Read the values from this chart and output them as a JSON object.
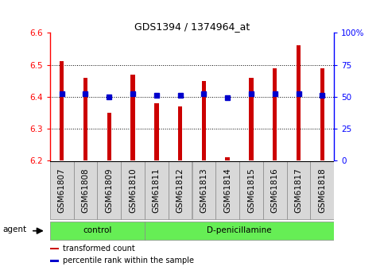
{
  "title": "GDS1394 / 1374964_at",
  "samples": [
    "GSM61807",
    "GSM61808",
    "GSM61809",
    "GSM61810",
    "GSM61811",
    "GSM61812",
    "GSM61813",
    "GSM61814",
    "GSM61815",
    "GSM61816",
    "GSM61817",
    "GSM61818"
  ],
  "bar_values": [
    6.51,
    6.46,
    6.35,
    6.47,
    6.38,
    6.37,
    6.45,
    6.21,
    6.46,
    6.49,
    6.56,
    6.49
  ],
  "percentile_values": [
    52,
    52,
    50,
    52,
    51,
    51,
    52,
    49,
    52,
    52,
    52,
    51
  ],
  "ylim_left": [
    6.2,
    6.6
  ],
  "ylim_right": [
    0,
    100
  ],
  "bar_color": "#cc0000",
  "dot_color": "#0000cc",
  "bar_bottom": 6.2,
  "bar_width": 0.18,
  "groups": [
    {
      "label": "control",
      "start": 0,
      "end": 4
    },
    {
      "label": "D-penicillamine",
      "start": 4,
      "end": 12
    }
  ],
  "group_color": "#66ee55",
  "tick_box_color": "#d8d8d8",
  "background_color": "#ffffff",
  "plot_bg_color": "#ffffff",
  "agent_label": "agent",
  "legend_items": [
    {
      "color": "#cc0000",
      "label": "transformed count"
    },
    {
      "color": "#0000cc",
      "label": "percentile rank within the sample"
    }
  ],
  "yticks_left": [
    6.2,
    6.3,
    6.4,
    6.5,
    6.6
  ],
  "yticks_right": [
    0,
    25,
    50,
    75,
    100
  ],
  "grid_yticks": [
    6.3,
    6.4,
    6.5
  ],
  "title_fontsize": 9,
  "tick_fontsize": 7.5,
  "label_fontsize": 7.5
}
